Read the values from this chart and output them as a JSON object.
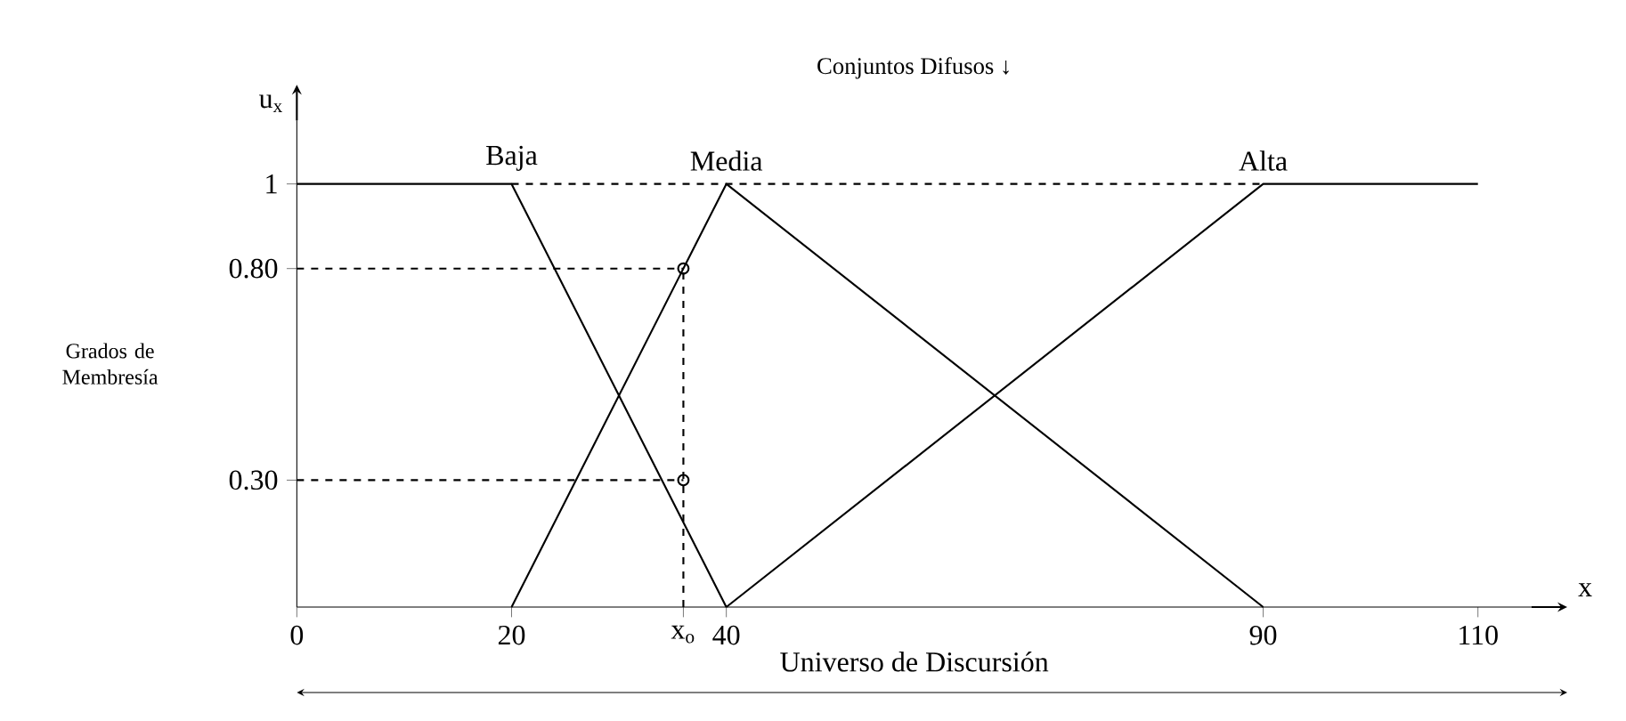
{
  "chart_data": {
    "type": "line",
    "title": "Conjuntos Difusos ↓",
    "xlabel": "Universo de Discursión",
    "ylabel": "Grados de Membresía",
    "annotations": [
      "u$_{x}$",
      "x"
    ],
    "xlim": [
      0,
      115
    ],
    "ylim": [
      0,
      1.15
    ],
    "xticks": [
      0,
      20,
      {
        "value": 36,
        "label": "x$_{o}$"
      },
      40,
      90,
      110
    ],
    "yticks": [
      {
        "value": 0.3,
        "label": "0.30"
      },
      {
        "value": 0.8,
        "label": "0.80"
      },
      1
    ],
    "series": [
      {
        "name": "Baja",
        "color": "#000000",
        "x": [
          0,
          20,
          40
        ],
        "values": [
          1,
          1,
          0
        ],
        "line_style": "solid"
      },
      {
        "name": "Media",
        "color": "#000000",
        "x": [
          20,
          40,
          90
        ],
        "values": [
          0,
          1,
          0
        ],
        "line_style": "solid"
      },
      {
        "name": "Alta",
        "color": "#000000",
        "x": [
          40,
          90,
          110
        ],
        "values": [
          0,
          1,
          1
        ],
        "line_style": "solid"
      },
      {
        "color": "#000000",
        "x": [
          20,
          90
        ],
        "values": [
          1,
          1
        ],
        "line_style": "dashed"
      },
      {
        "color": "#000000",
        "x": [
          0,
          36
        ],
        "values": [
          0.8,
          0.8
        ],
        "line_style": "dashed"
      },
      {
        "color": "#000000",
        "x": [
          0,
          36
        ],
        "values": [
          0.3,
          0.3
        ],
        "line_style": "dashed"
      },
      {
        "color": "#000000",
        "x": [
          36,
          36
        ],
        "values": [
          0,
          0.8
        ],
        "line_style": "dashed"
      },
      {
        "type": "scatter",
        "color": "#000000",
        "x": [
          36,
          36
        ],
        "values": [
          0.8,
          0.3
        ],
        "marker": "circle"
      }
    ]
  }
}
